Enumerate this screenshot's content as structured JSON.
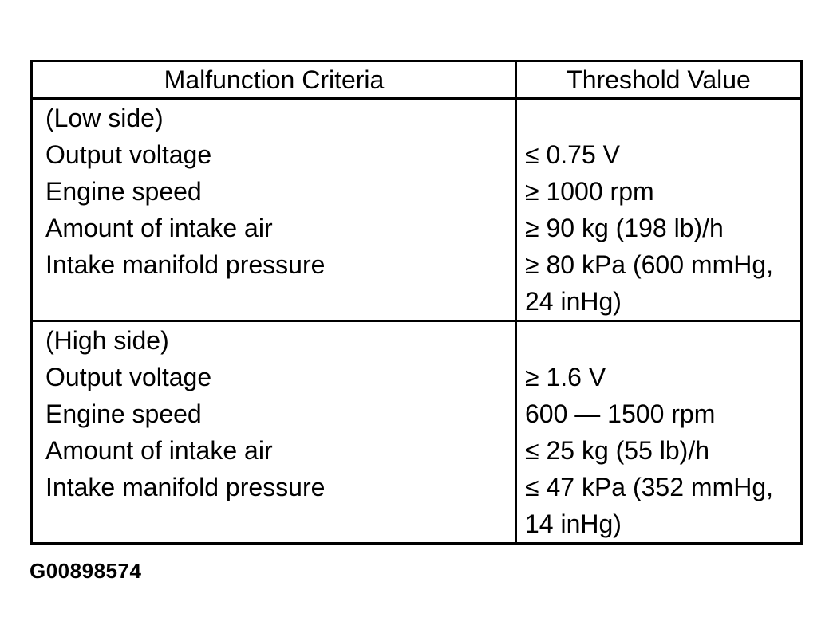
{
  "colors": {
    "ink": "#000000",
    "paper": "#ffffff"
  },
  "table": {
    "headers": [
      "Malfunction Criteria",
      "Threshold Value"
    ],
    "sections": [
      {
        "rows": [
          {
            "criteria": "(Low side)",
            "value": ""
          },
          {
            "criteria": "Output voltage",
            "value": "≤ 0.75 V"
          },
          {
            "criteria": "Engine speed",
            "value": "≥ 1000 rpm"
          },
          {
            "criteria": "Amount of intake air",
            "value": "≥ 90 kg (198 lb)/h"
          },
          {
            "criteria": "Intake manifold pressure",
            "value": "≥ 80 kPa (600 mmHg, 24 inHg)"
          }
        ]
      },
      {
        "rows": [
          {
            "criteria": "(High side)",
            "value": ""
          },
          {
            "criteria": "Output voltage",
            "value": "≥ 1.6 V"
          },
          {
            "criteria": "Engine speed",
            "value": "600 — 1500 rpm"
          },
          {
            "criteria": "Amount of intake air",
            "value": "≤ 25 kg (55 lb)/h"
          },
          {
            "criteria": "Intake manifold pressure",
            "value": "≤ 47 kPa (352 mmHg, 14 inHg)"
          }
        ]
      }
    ]
  },
  "figure": {
    "caption": "G00898574"
  }
}
